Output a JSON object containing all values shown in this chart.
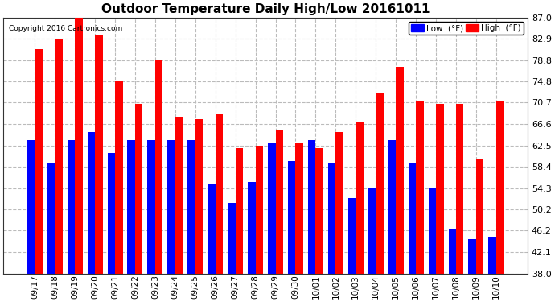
{
  "title": "Outdoor Temperature Daily High/Low 20161011",
  "copyright": "Copyright 2016 Cartronics.com",
  "categories": [
    "09/17",
    "09/18",
    "09/19",
    "09/20",
    "09/21",
    "09/22",
    "09/23",
    "09/24",
    "09/25",
    "09/26",
    "09/27",
    "09/28",
    "09/29",
    "09/30",
    "10/01",
    "10/02",
    "10/03",
    "10/04",
    "10/05",
    "10/06",
    "10/07",
    "10/08",
    "10/09",
    "10/10"
  ],
  "high": [
    81.0,
    83.0,
    87.0,
    83.5,
    75.0,
    70.5,
    79.0,
    68.0,
    67.5,
    68.5,
    62.0,
    62.5,
    65.5,
    63.0,
    62.0,
    65.0,
    67.0,
    72.5,
    77.5,
    71.0,
    70.5,
    70.5,
    60.0,
    71.0
  ],
  "low": [
    63.5,
    59.0,
    63.5,
    65.0,
    61.0,
    63.5,
    63.5,
    63.5,
    63.5,
    55.0,
    51.5,
    55.5,
    63.0,
    59.5,
    63.5,
    59.0,
    52.5,
    54.5,
    63.5,
    59.0,
    54.5,
    46.5,
    44.5,
    45.0
  ],
  "high_color": "#ff0000",
  "low_color": "#0000ff",
  "bg_color": "#ffffff",
  "grid_color": "#bbbbbb",
  "ylim_min": 38.0,
  "ylim_max": 87.0,
  "yticks": [
    38.0,
    42.1,
    46.2,
    50.2,
    54.3,
    58.4,
    62.5,
    66.6,
    70.7,
    74.8,
    78.8,
    82.9,
    87.0
  ],
  "title_fontsize": 11,
  "bar_width": 0.38,
  "legend_low_label": "Low  (°F)",
  "legend_high_label": "High  (°F)"
}
